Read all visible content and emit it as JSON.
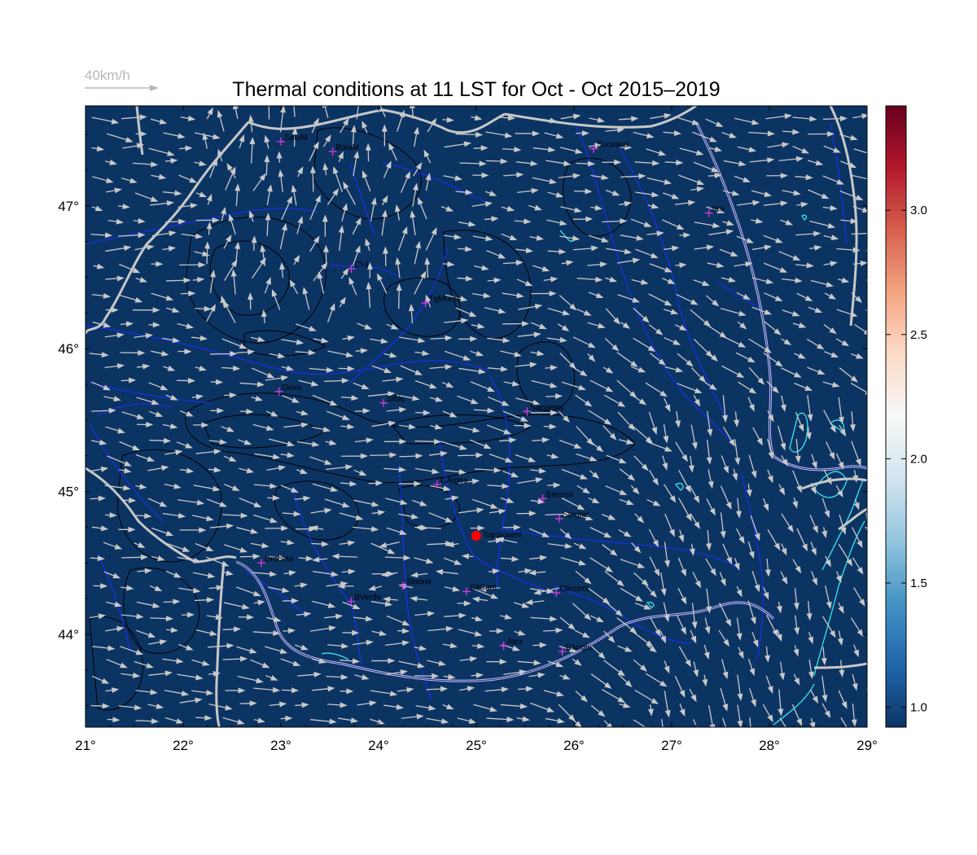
{
  "title": "Thermal conditions at 11 LST for Oct - Oct  2015–2019",
  "reference_vector": {
    "label": "40km/h",
    "speed": 40
  },
  "map": {
    "lon_range": [
      21,
      29
    ],
    "lat_range": [
      43.35,
      47.7
    ],
    "background_color": "#0b3463",
    "river_color": "#1a2fe0",
    "border_color": "#c8c8c8",
    "danube_color": "#c9b9ff",
    "lake_color": "#38e6f0",
    "contour_color": "#000000",
    "vector_color": "#c8c8c8",
    "station_marker_color": "#d23bd6",
    "x_ticks": [
      {
        "value": 21,
        "label": "21°"
      },
      {
        "value": 22,
        "label": "22°"
      },
      {
        "value": 23,
        "label": "23°"
      },
      {
        "value": 24,
        "label": "24°"
      },
      {
        "value": 25,
        "label": "25°"
      },
      {
        "value": 26,
        "label": "26°"
      },
      {
        "value": 27,
        "label": "27°"
      },
      {
        "value": 28,
        "label": "28°"
      },
      {
        "value": 29,
        "label": "29°"
      }
    ],
    "y_ticks": [
      {
        "value": 44,
        "label": "44°"
      },
      {
        "value": 45,
        "label": "45°"
      },
      {
        "value": 46,
        "label": "46°"
      },
      {
        "value": 47,
        "label": "47°"
      }
    ],
    "stations": [
      {
        "name": "SatuM",
        "lon": 23.0,
        "lat": 47.45
      },
      {
        "name": "BaiaM",
        "lon": 23.53,
        "lat": 47.38
      },
      {
        "name": "Suceava",
        "lon": 26.2,
        "lat": 47.4
      },
      {
        "name": "Iasi",
        "lon": 27.38,
        "lat": 46.95
      },
      {
        "name": "Cluj",
        "lon": 23.72,
        "lat": 46.56
      },
      {
        "name": "TgMures",
        "lon": 24.48,
        "lat": 46.32
      },
      {
        "name": "Deva",
        "lon": 22.98,
        "lat": 45.7
      },
      {
        "name": "Sibiu",
        "lon": 24.05,
        "lat": 45.62
      },
      {
        "name": "Sanpetru",
        "lon": 25.52,
        "lat": 45.56
      },
      {
        "name": "CArges",
        "lon": 24.6,
        "lat": 45.05
      },
      {
        "name": "Banesti",
        "lon": 25.68,
        "lat": 44.95
      },
      {
        "name": "Strejnic",
        "lon": 25.85,
        "lat": 44.81
      },
      {
        "name": "Drobeta",
        "lon": 22.8,
        "lat": 44.5
      },
      {
        "name": "Slatina",
        "lon": 24.25,
        "lat": 44.34
      },
      {
        "name": "SilGum",
        "lon": 24.9,
        "lat": 44.3
      },
      {
        "name": "BVerde",
        "lon": 23.72,
        "lat": 44.23
      },
      {
        "name": "Clinceni",
        "lon": 25.82,
        "lat": 44.29
      },
      {
        "name": "Alex",
        "lon": 25.28,
        "lat": 43.92
      },
      {
        "name": "Giurgiu",
        "lon": 25.88,
        "lat": 43.88
      }
    ],
    "highlight_station": {
      "name": "Topoloveni",
      "lon": 25.0,
      "lat": 44.69,
      "color": "#ff0000"
    }
  },
  "colorbar": {
    "min": 0.92,
    "max": 3.42,
    "ticks": [
      {
        "value": 1.0,
        "label": "1.0"
      },
      {
        "value": 1.5,
        "label": "1.5"
      },
      {
        "value": 2.0,
        "label": "2.0"
      },
      {
        "value": 2.5,
        "label": "2.5"
      },
      {
        "value": 3.0,
        "label": "3.0"
      }
    ],
    "stops": [
      "#0b3463",
      "#2166ac",
      "#4393c3",
      "#92c5de",
      "#d1e5f0",
      "#f7f7f7",
      "#fddbc7",
      "#f4a582",
      "#d6604d",
      "#b2182b",
      "#67001f"
    ]
  }
}
